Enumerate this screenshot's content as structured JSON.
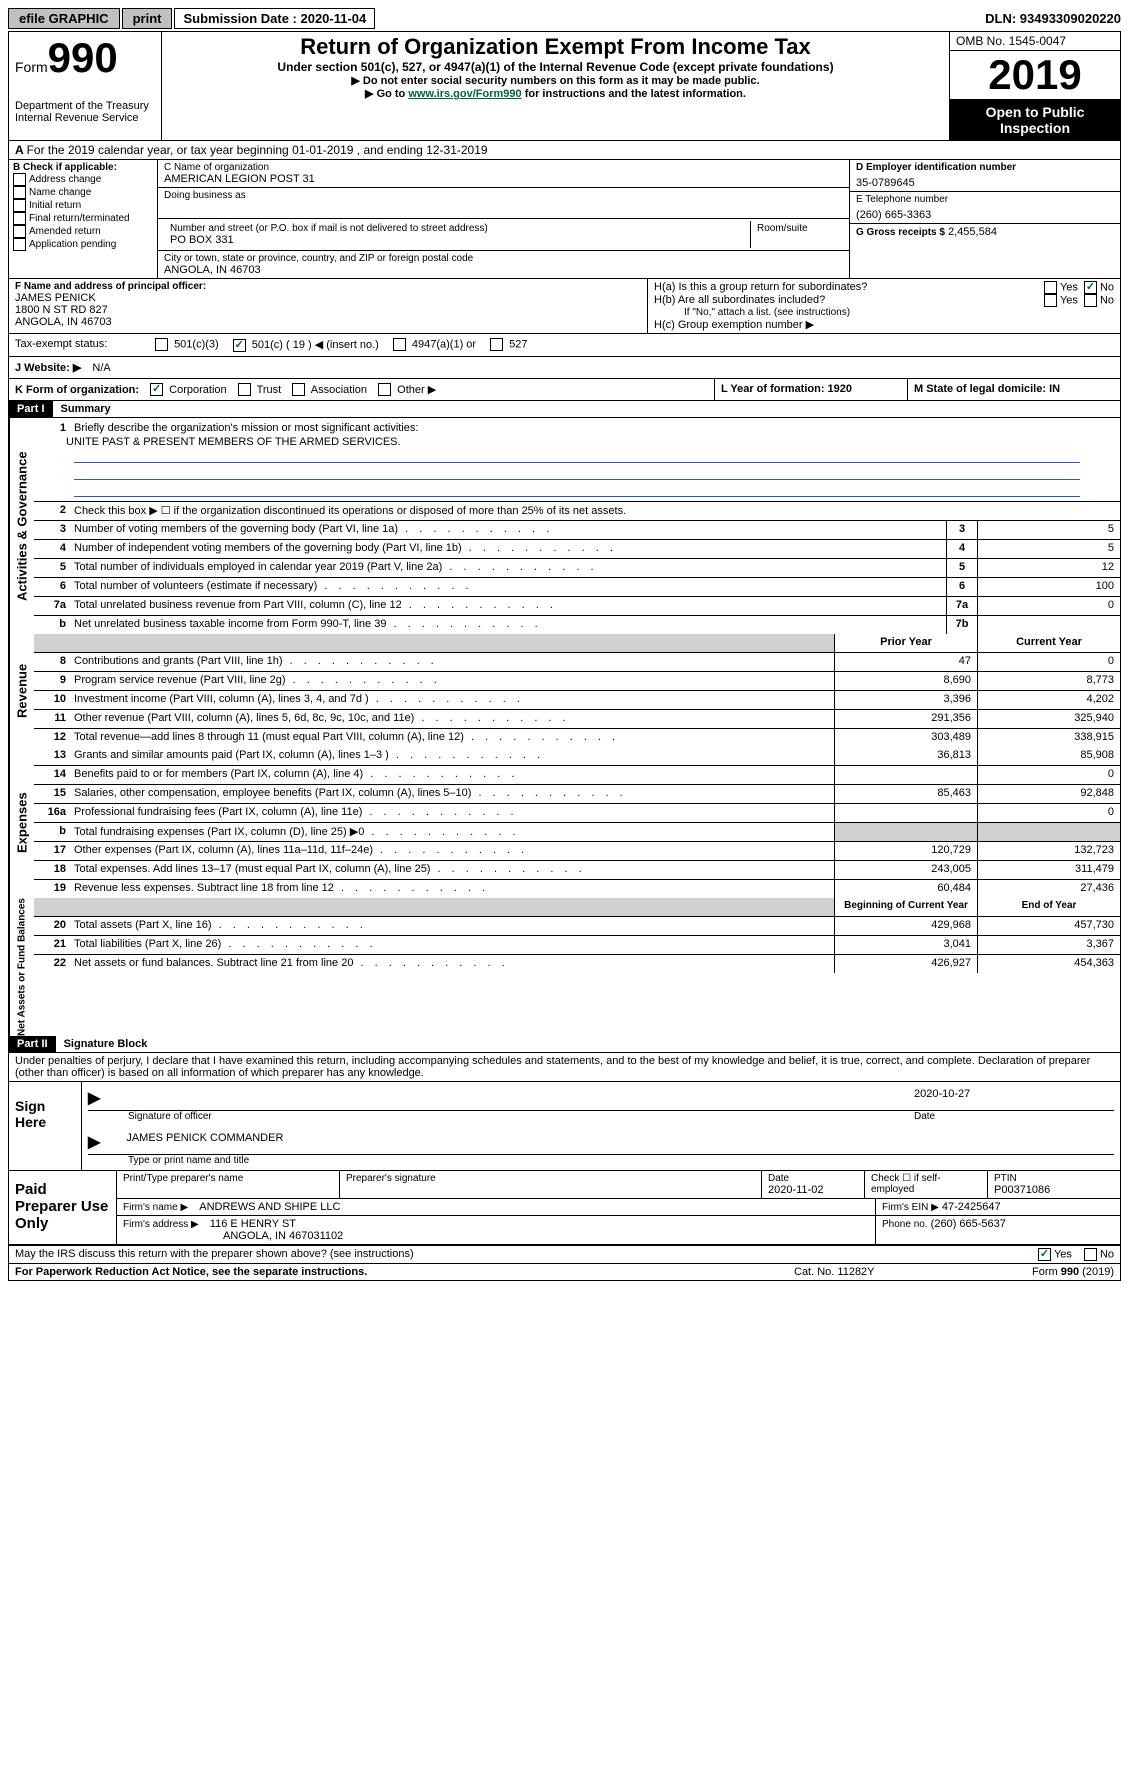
{
  "topbar": {
    "efile": "efile GRAPHIC",
    "print": "print",
    "sub_label": "Submission Date : 2020-11-04",
    "dln": "DLN: 93493309020220"
  },
  "header": {
    "form_label": "Form",
    "form_num": "990",
    "dept": "Department of the Treasury\nInternal Revenue Service",
    "title": "Return of Organization Exempt From Income Tax",
    "sub1": "Under section 501(c), 527, or 4947(a)(1) of the Internal Revenue Code (except private foundations)",
    "sub2": "▶ Do not enter social security numbers on this form as it may be made public.",
    "sub3_pre": "▶ Go to ",
    "sub3_link": "www.irs.gov/Form990",
    "sub3_post": " for instructions and the latest information.",
    "omb": "OMB No. 1545-0047",
    "year": "2019",
    "open": "Open to Public Inspection"
  },
  "rowA": "For the 2019 calendar year, or tax year beginning 01-01-2019    , and ending 12-31-2019",
  "boxB": {
    "title": "B Check if applicable:",
    "items": [
      "Address change",
      "Name change",
      "Initial return",
      "Final return/terminated",
      "Amended return",
      "Application pending"
    ]
  },
  "boxC": {
    "name_label": "C Name of organization",
    "name": "AMERICAN LEGION POST 31",
    "dba_label": "Doing business as",
    "addr_label": "Number and street (or P.O. box if mail is not delivered to street address)",
    "room_label": "Room/suite",
    "addr": "PO BOX 331",
    "city_label": "City or town, state or province, country, and ZIP or foreign postal code",
    "city": "ANGOLA, IN  46703"
  },
  "boxD": {
    "label": "D Employer identification number",
    "value": "35-0789645"
  },
  "boxE": {
    "label": "E Telephone number",
    "value": "(260) 665-3363"
  },
  "boxG": {
    "label": "G Gross receipts $",
    "value": "2,455,584"
  },
  "boxF": {
    "label": "F  Name and address of principal officer:",
    "name": "JAMES PENICK",
    "addr1": "1800 N ST RD 827",
    "addr2": "ANGOLA, IN  46703"
  },
  "boxH": {
    "a": "H(a)  Is this a group return for subordinates?",
    "b": "H(b)  Are all subordinates included?",
    "b_note": "If \"No,\" attach a list. (see instructions)",
    "c": "H(c)  Group exemption number ▶"
  },
  "taxStatus": {
    "label": "Tax-exempt status:",
    "opt1": "501(c)(3)",
    "opt2": "501(c) ( 19 ) ◀ (insert no.)",
    "opt3": "4947(a)(1) or",
    "opt4": "527"
  },
  "rowJ": {
    "label": "J   Website: ▶",
    "value": "N/A"
  },
  "rowK": {
    "label": "K Form of organization:",
    "opts": [
      "Corporation",
      "Trust",
      "Association",
      "Other ▶"
    ],
    "l": "L Year of formation: 1920",
    "m": "M State of legal domicile: IN"
  },
  "part1": {
    "header": "Part I",
    "title": "Summary",
    "line1": "Briefly describe the organization's mission or most significant activities:",
    "line1_val": "UNITE PAST & PRESENT MEMBERS OF THE ARMED SERVICES.",
    "line2": "Check this box ▶ ☐  if the organization discontinued its operations or disposed of more than 25% of its net assets.",
    "lines_a": [
      {
        "n": "3",
        "label": "Number of voting members of the governing body (Part VI, line 1a)",
        "box": "3",
        "val": "5"
      },
      {
        "n": "4",
        "label": "Number of independent voting members of the governing body (Part VI, line 1b)",
        "box": "4",
        "val": "5"
      },
      {
        "n": "5",
        "label": "Total number of individuals employed in calendar year 2019 (Part V, line 2a)",
        "box": "5",
        "val": "12"
      },
      {
        "n": "6",
        "label": "Total number of volunteers (estimate if necessary)",
        "box": "6",
        "val": "100"
      },
      {
        "n": "7a",
        "label": "Total unrelated business revenue from Part VIII, column (C), line 12",
        "box": "7a",
        "val": "0"
      },
      {
        "n": "b",
        "label": "Net unrelated business taxable income from Form 990-T, line 39",
        "box": "7b",
        "val": ""
      }
    ],
    "col_prior": "Prior Year",
    "col_current": "Current Year",
    "revenue": [
      {
        "n": "8",
        "label": "Contributions and grants (Part VIII, line 1h)",
        "p": "47",
        "c": "0"
      },
      {
        "n": "9",
        "label": "Program service revenue (Part VIII, line 2g)",
        "p": "8,690",
        "c": "8,773"
      },
      {
        "n": "10",
        "label": "Investment income (Part VIII, column (A), lines 3, 4, and 7d )",
        "p": "3,396",
        "c": "4,202"
      },
      {
        "n": "11",
        "label": "Other revenue (Part VIII, column (A), lines 5, 6d, 8c, 9c, 10c, and 11e)",
        "p": "291,356",
        "c": "325,940"
      },
      {
        "n": "12",
        "label": "Total revenue—add lines 8 through 11 (must equal Part VIII, column (A), line 12)",
        "p": "303,489",
        "c": "338,915"
      }
    ],
    "expenses": [
      {
        "n": "13",
        "label": "Grants and similar amounts paid (Part IX, column (A), lines 1–3 )",
        "p": "36,813",
        "c": "85,908"
      },
      {
        "n": "14",
        "label": "Benefits paid to or for members (Part IX, column (A), line 4)",
        "p": "",
        "c": "0"
      },
      {
        "n": "15",
        "label": "Salaries, other compensation, employee benefits (Part IX, column (A), lines 5–10)",
        "p": "85,463",
        "c": "92,848"
      },
      {
        "n": "16a",
        "label": "Professional fundraising fees (Part IX, column (A), line 11e)",
        "p": "",
        "c": "0"
      },
      {
        "n": "b",
        "label": "Total fundraising expenses (Part IX, column (D), line 25) ▶0",
        "p": "SHADED",
        "c": "SHADED"
      },
      {
        "n": "17",
        "label": "Other expenses (Part IX, column (A), lines 11a–11d, 11f–24e)",
        "p": "120,729",
        "c": "132,723"
      },
      {
        "n": "18",
        "label": "Total expenses. Add lines 13–17 (must equal Part IX, column (A), line 25)",
        "p": "243,005",
        "c": "311,479"
      },
      {
        "n": "19",
        "label": "Revenue less expenses. Subtract line 18 from line 12",
        "p": "60,484",
        "c": "27,436"
      }
    ],
    "col_begin": "Beginning of Current Year",
    "col_end": "End of Year",
    "netassets": [
      {
        "n": "20",
        "label": "Total assets (Part X, line 16)",
        "p": "429,968",
        "c": "457,730"
      },
      {
        "n": "21",
        "label": "Total liabilities (Part X, line 26)",
        "p": "3,041",
        "c": "3,367"
      },
      {
        "n": "22",
        "label": "Net assets or fund balances. Subtract line 21 from line 20",
        "p": "426,927",
        "c": "454,363"
      }
    ]
  },
  "part2": {
    "header": "Part II",
    "title": "Signature Block",
    "declaration": "Under penalties of perjury, I declare that I have examined this return, including accompanying schedules and statements, and to the best of my knowledge and belief, it is true, correct, and complete. Declaration of preparer (other than officer) is based on all information of which preparer has any knowledge."
  },
  "sign": {
    "left": "Sign Here",
    "sig_label": "Signature of officer",
    "date_label": "Date",
    "date": "2020-10-27",
    "name": "JAMES PENICK COMMANDER",
    "name_label": "Type or print name and title"
  },
  "prep": {
    "left": "Paid Preparer Use Only",
    "r1": {
      "c1_label": "Print/Type preparer's name",
      "c2_label": "Preparer's signature",
      "c3_label": "Date",
      "c3_val": "2020-11-02",
      "c4_label": "Check ☐ if self-employed",
      "c5_label": "PTIN",
      "c5_val": "P00371086"
    },
    "r2": {
      "firm_label": "Firm's name      ▶",
      "firm": "ANDREWS AND SHIPE LLC",
      "ein_label": "Firm's EIN ▶",
      "ein": "47-2425647"
    },
    "r3": {
      "addr_label": "Firm's address  ▶",
      "addr1": "116 E HENRY ST",
      "addr2": "ANGOLA, IN  467031102",
      "phone_label": "Phone no.",
      "phone": "(260) 665-5637"
    }
  },
  "discuss": "May the IRS discuss this return with the preparer shown above? (see instructions)",
  "footer": {
    "left": "For Paperwork Reduction Act Notice, see the separate instructions.",
    "mid": "Cat. No. 11282Y",
    "right": "Form 990 (2019)"
  },
  "yesno": {
    "yes": "Yes",
    "no": "No"
  }
}
